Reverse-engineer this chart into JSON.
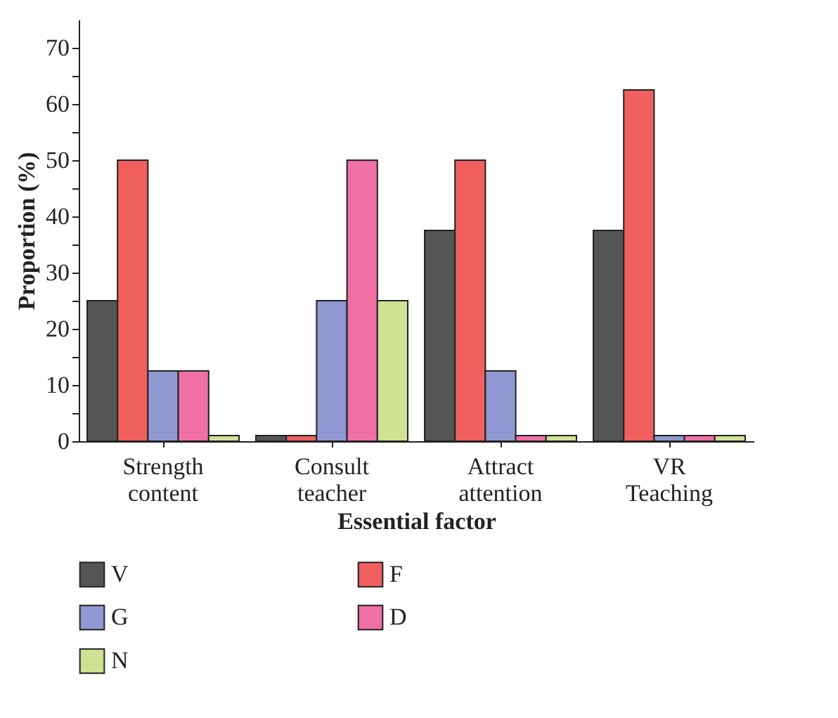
{
  "chart_data": {
    "type": "bar",
    "xlabel": "Essential factor",
    "ylabel": "Proportion (%)",
    "categories": [
      "Strength content",
      "Consult teacher",
      "Attract attention",
      "VR Teaching"
    ],
    "series": [
      {
        "name": "V",
        "color": "#555555",
        "values": [
          25,
          1,
          37.5,
          37.5
        ]
      },
      {
        "name": "F",
        "color": "#f0605f",
        "values": [
          50,
          1,
          50,
          62.5
        ]
      },
      {
        "name": "G",
        "color": "#8f98d0",
        "values": [
          12.5,
          25,
          12.5,
          1
        ]
      },
      {
        "name": "D",
        "color": "#f06fa5",
        "values": [
          12.5,
          50,
          1,
          1
        ]
      },
      {
        "name": "N",
        "color": "#cfe294",
        "values": [
          1,
          25,
          1,
          1
        ]
      }
    ],
    "ylim": [
      0,
      75
    ],
    "yticks": [
      0,
      {
        "value": 5,
        "label": null
      },
      10,
      {
        "value": 15,
        "label": null
      },
      20,
      {
        "value": 25,
        "label": null
      },
      30,
      {
        "value": 35,
        "label": null
      },
      40,
      {
        "value": 45,
        "label": null
      },
      50,
      {
        "value": 55,
        "label": null
      },
      60,
      {
        "value": 65,
        "label": null
      },
      70
    ],
    "grid": false,
    "legend": "bottom"
  }
}
